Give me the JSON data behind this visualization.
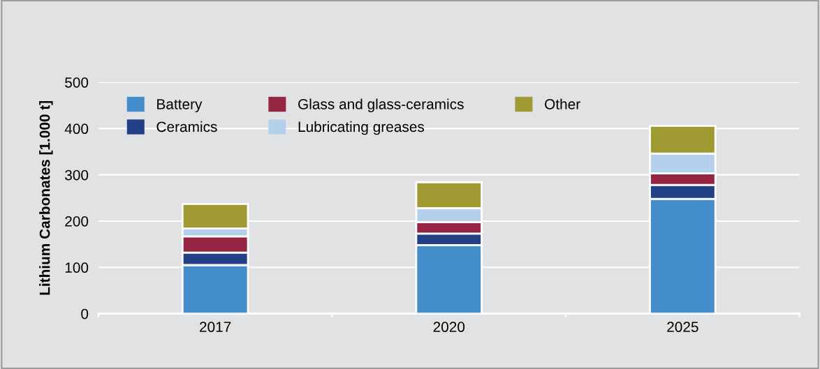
{
  "chart_data": {
    "type": "bar",
    "stacked": true,
    "ylabel": "Lithium Carbonates [1.000 t]",
    "categories": [
      "2017",
      "2020",
      "2025"
    ],
    "series": [
      {
        "name": "Battery",
        "color": "#428dca",
        "values": [
          105,
          148,
          248
        ]
      },
      {
        "name": "Ceramics",
        "color": "#233f85",
        "values": [
          27,
          25,
          30
        ]
      },
      {
        "name": "Glass and glass-ceramics",
        "color": "#962544",
        "values": [
          35,
          25,
          25
        ]
      },
      {
        "name": "Lubricating greases",
        "color": "#b5d0ea",
        "values": [
          17,
          30,
          43
        ]
      },
      {
        "name": "Other",
        "color": "#a09a33",
        "values": [
          53,
          56,
          60
        ]
      }
    ],
    "ylim": [
      0,
      500
    ],
    "yticks": [
      0,
      100,
      200,
      300,
      400,
      500
    ],
    "grid": "y",
    "legend": "top left"
  }
}
